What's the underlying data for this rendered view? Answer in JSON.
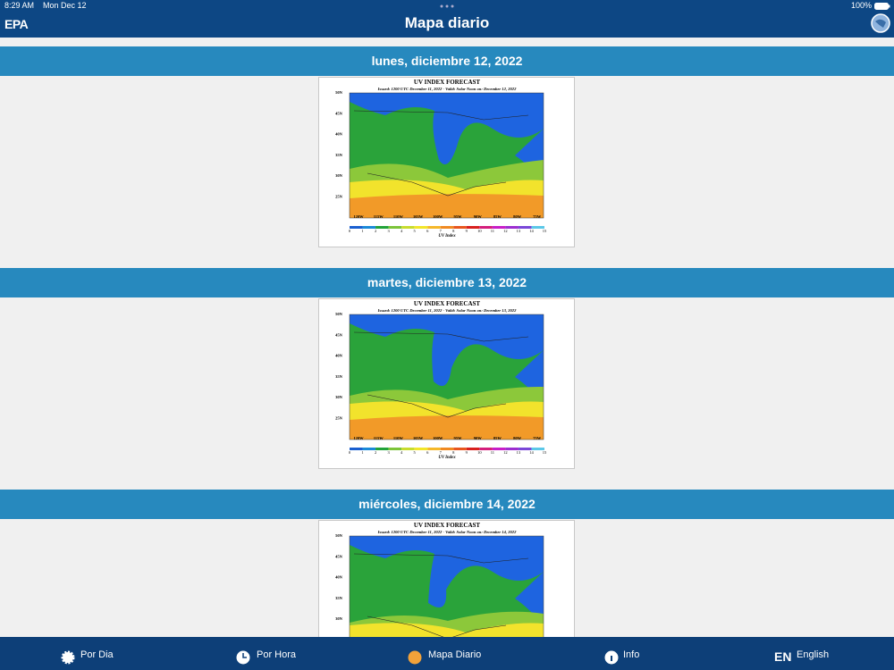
{
  "status": {
    "time": "8:29 AM",
    "date": "Mon Dec 12",
    "battery": "100%"
  },
  "header": {
    "logo": "EPA",
    "title": "Mapa diario"
  },
  "map_common": {
    "title": "UV INDEX FORECAST",
    "lat_labels": [
      "50N",
      "45N",
      "40N",
      "35N",
      "30N",
      "25N"
    ],
    "lon_labels": [
      "120W",
      "115W",
      "110W",
      "105W",
      "100W",
      "95W",
      "90W",
      "85W",
      "80W",
      "75W"
    ],
    "scale_labels": [
      "0",
      "1",
      "2",
      "3",
      "4",
      "5",
      "6",
      "7",
      "8",
      "9",
      "10",
      "11",
      "12",
      "13",
      "14",
      "15"
    ],
    "scale_title": "UV Index"
  },
  "days": [
    {
      "heading": "lunes, diciembre 12, 2022",
      "issued": "Issued: 1200 UTC December 11, 2022  -  Valid: Solar Noon on: December 12, 2022"
    },
    {
      "heading": "martes, diciembre 13, 2022",
      "issued": "Issued: 1200 UTC December 11, 2022  -  Valid: Solar Noon on: December 13, 2022"
    },
    {
      "heading": "miércoles, diciembre 14, 2022",
      "issued": "Issued: 1200 UTC December 11, 2022  -  Valid: Solar Noon on: December 14, 2022"
    }
  ],
  "tabs": [
    {
      "label": "Por Dia"
    },
    {
      "label": "Por Hora"
    },
    {
      "label": "Mapa Diario"
    },
    {
      "label": "Info"
    },
    {
      "icon_text": "EN",
      "label": "English"
    }
  ]
}
